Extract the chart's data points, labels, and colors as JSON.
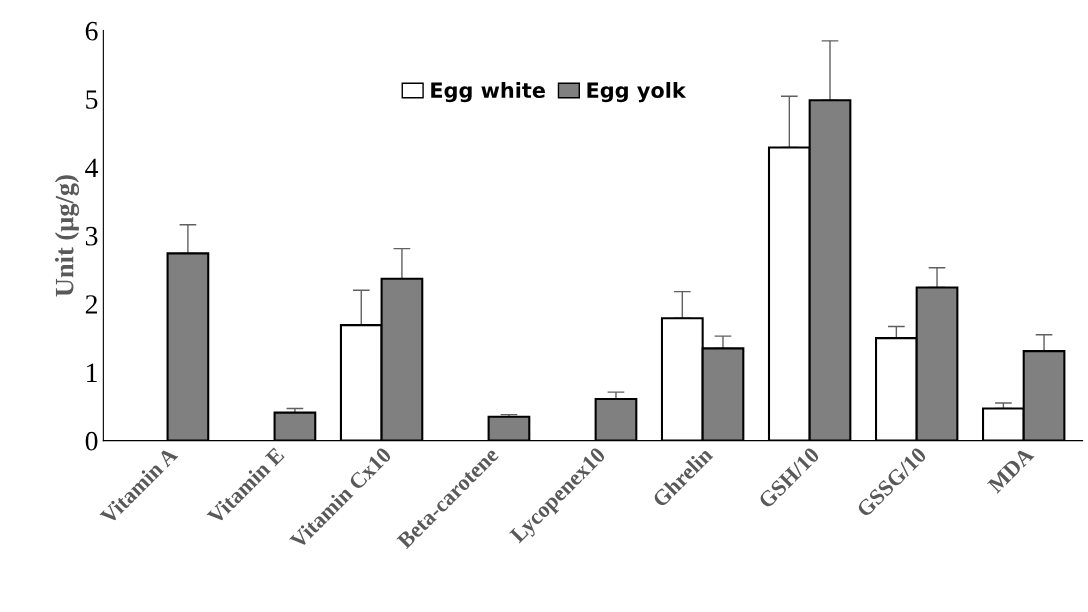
{
  "chart_data": {
    "type": "bar",
    "ylabel": "Unit (µg/g)",
    "categories": [
      "Vitamin A",
      "Vitamin E",
      "Vitamin Cx10",
      "Beta-carotene",
      "Lycopenex10",
      "Ghrelin",
      "GSH/10",
      "GSSG/10",
      "MDA"
    ],
    "series": [
      {
        "name": "Egg white",
        "color": "#ffffff",
        "values": [
          null,
          null,
          1.69,
          null,
          null,
          1.79,
          4.29,
          1.5,
          0.47
        ],
        "errors": [
          null,
          null,
          0.51,
          null,
          null,
          0.39,
          0.75,
          0.17,
          0.08
        ]
      },
      {
        "name": "Egg yolk",
        "color": "#808080",
        "values": [
          2.74,
          0.41,
          2.37,
          0.35,
          0.61,
          1.35,
          4.98,
          2.24,
          1.31
        ],
        "errors": [
          0.42,
          0.06,
          0.44,
          0.03,
          0.1,
          0.18,
          0.87,
          0.29,
          0.24
        ]
      }
    ],
    "ylim": [
      0,
      6
    ],
    "yticks": [
      0,
      1,
      2,
      3,
      4,
      5,
      6
    ],
    "grid": false,
    "legend": "top"
  }
}
